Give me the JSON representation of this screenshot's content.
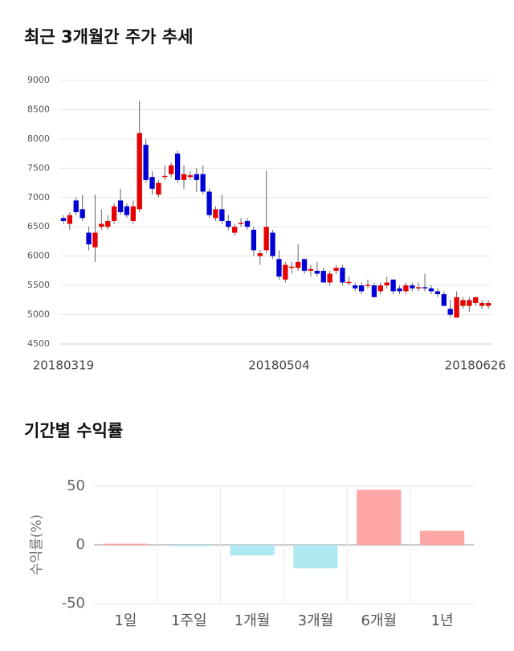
{
  "chart_data": [
    {
      "type": "candlestick",
      "title": "최근 3개월간 주가 추세",
      "categories": [
        "20180319",
        null,
        null,
        null,
        null,
        null,
        null,
        null,
        null,
        null,
        null,
        null,
        null,
        null,
        null,
        null,
        null,
        null,
        null,
        null,
        null,
        null,
        null,
        null,
        null,
        null,
        null,
        null,
        null,
        null,
        null,
        null,
        null,
        null,
        "20180504",
        null,
        null,
        null,
        null,
        null,
        null,
        null,
        null,
        null,
        null,
        null,
        null,
        null,
        null,
        null,
        null,
        null,
        null,
        null,
        null,
        null,
        null,
        null,
        null,
        null,
        null,
        null,
        null,
        null,
        null,
        null,
        null,
        "20180626"
      ],
      "open": [
        6650,
        6550,
        6950,
        6800,
        6400,
        6150,
        6500,
        6500,
        6600,
        6950,
        6850,
        6600,
        6800,
        7900,
        7350,
        7050,
        7350,
        7400,
        7750,
        7300,
        7350,
        7400,
        7400,
        7100,
        6650,
        6800,
        6600,
        6400,
        6550,
        6600,
        6450,
        6000,
        6100,
        6400,
        5950,
        5600,
        5800,
        5800,
        5950,
        5750,
        5750,
        5750,
        5550,
        5750,
        5800,
        5550,
        5500,
        5500,
        5500,
        5500,
        5400,
        5500,
        5600,
        5450,
        5400,
        5500,
        5450,
        5470,
        5450,
        5400,
        5350,
        5100,
        4950,
        5150,
        5150,
        5200,
        5150,
        5150
      ],
      "high": [
        6700,
        6750,
        7000,
        7050,
        6500,
        7050,
        6800,
        6700,
        6900,
        7150,
        6900,
        6950,
        8650,
        8000,
        7450,
        7300,
        7550,
        7600,
        7800,
        7550,
        7450,
        7500,
        7550,
        7150,
        6850,
        7050,
        6700,
        6550,
        6650,
        6650,
        6500,
        6100,
        7450,
        6450,
        6100,
        5900,
        5900,
        6200,
        5950,
        5850,
        5900,
        5800,
        5750,
        5850,
        5850,
        5650,
        5550,
        5550,
        5600,
        5550,
        5550,
        5650,
        5600,
        5500,
        5550,
        5550,
        5550,
        5700,
        5500,
        5450,
        5400,
        5250,
        5400,
        5300,
        5300,
        5300,
        5250,
        5250
      ],
      "low": [
        6550,
        6450,
        6700,
        6600,
        6100,
        5900,
        6450,
        6450,
        6550,
        6700,
        6650,
        6550,
        6750,
        7250,
        7050,
        7000,
        7300,
        7350,
        7250,
        7150,
        7300,
        7100,
        7050,
        6650,
        6600,
        6550,
        6450,
        6350,
        6500,
        6450,
        6000,
        5850,
        6050,
        5950,
        5600,
        5550,
        5700,
        5750,
        5700,
        5650,
        5650,
        5550,
        5500,
        5700,
        5500,
        5500,
        5400,
        5350,
        5450,
        5300,
        5350,
        5450,
        5350,
        5350,
        5350,
        5400,
        5400,
        5400,
        5350,
        5300,
        5150,
        4950,
        4950,
        5100,
        5050,
        5150,
        5100,
        5100
      ],
      "close": [
        6600,
        6700,
        6750,
        6650,
        6200,
        6400,
        6550,
        6600,
        6850,
        6750,
        6700,
        6850,
        8100,
        7300,
        7150,
        7250,
        7370,
        7550,
        7300,
        7400,
        7380,
        7300,
        7100,
        6700,
        6800,
        6600,
        6500,
        6500,
        6570,
        6500,
        6100,
        6050,
        6500,
        6000,
        5650,
        5850,
        5820,
        5900,
        5750,
        5780,
        5700,
        5550,
        5700,
        5800,
        5550,
        5560,
        5450,
        5400,
        5510,
        5300,
        5500,
        5550,
        5400,
        5400,
        5500,
        5450,
        5470,
        5450,
        5400,
        5350,
        5150,
        5000,
        5300,
        5250,
        5250,
        5300,
        5200,
        5200
      ],
      "up_color": "#e60000",
      "down_color": "#0000d6",
      "ylim": [
        4500,
        9000
      ],
      "yticks": [
        4500,
        5000,
        5500,
        6000,
        6500,
        7000,
        7500,
        8000,
        8500,
        9000
      ],
      "grid": true
    },
    {
      "type": "bar",
      "title": "기간별 수익률",
      "y_label": "수익률(%)",
      "categories": [
        "1일",
        "1주일",
        "1개월",
        "3개월",
        "6개월",
        "1년"
      ],
      "values": [
        1,
        -1,
        -9,
        -20,
        47,
        12
      ],
      "positive_color": "#ffa6a6",
      "negative_color": "#aee9f1",
      "ylim": [
        -50,
        50
      ],
      "yticks": [
        -50,
        0,
        50
      ],
      "grid": true
    }
  ]
}
